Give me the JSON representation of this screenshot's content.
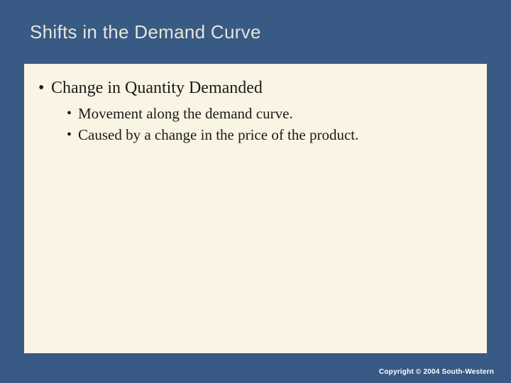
{
  "slide": {
    "title": "Shifts in the Demand Curve",
    "background_color": "#385a84",
    "title_color": "#e8e4d8",
    "title_fontsize": 26,
    "title_fontfamily": "Arial",
    "content_box": {
      "background_color": "#f9f4e3",
      "bullets": [
        {
          "text": "Change in Quantity Demanded",
          "fontsize": 24,
          "color": "#1a1a1a",
          "children": [
            {
              "text": "Movement along the demand curve.",
              "fontsize": 21,
              "color": "#1a1a1a"
            },
            {
              "text": "Caused by a change in the price of the product.",
              "fontsize": 21,
              "color": "#1a1a1a"
            }
          ]
        }
      ]
    },
    "copyright": "Copyright © 2004 South-Western",
    "copyright_color": "#ffffff",
    "copyright_fontsize": 10
  }
}
